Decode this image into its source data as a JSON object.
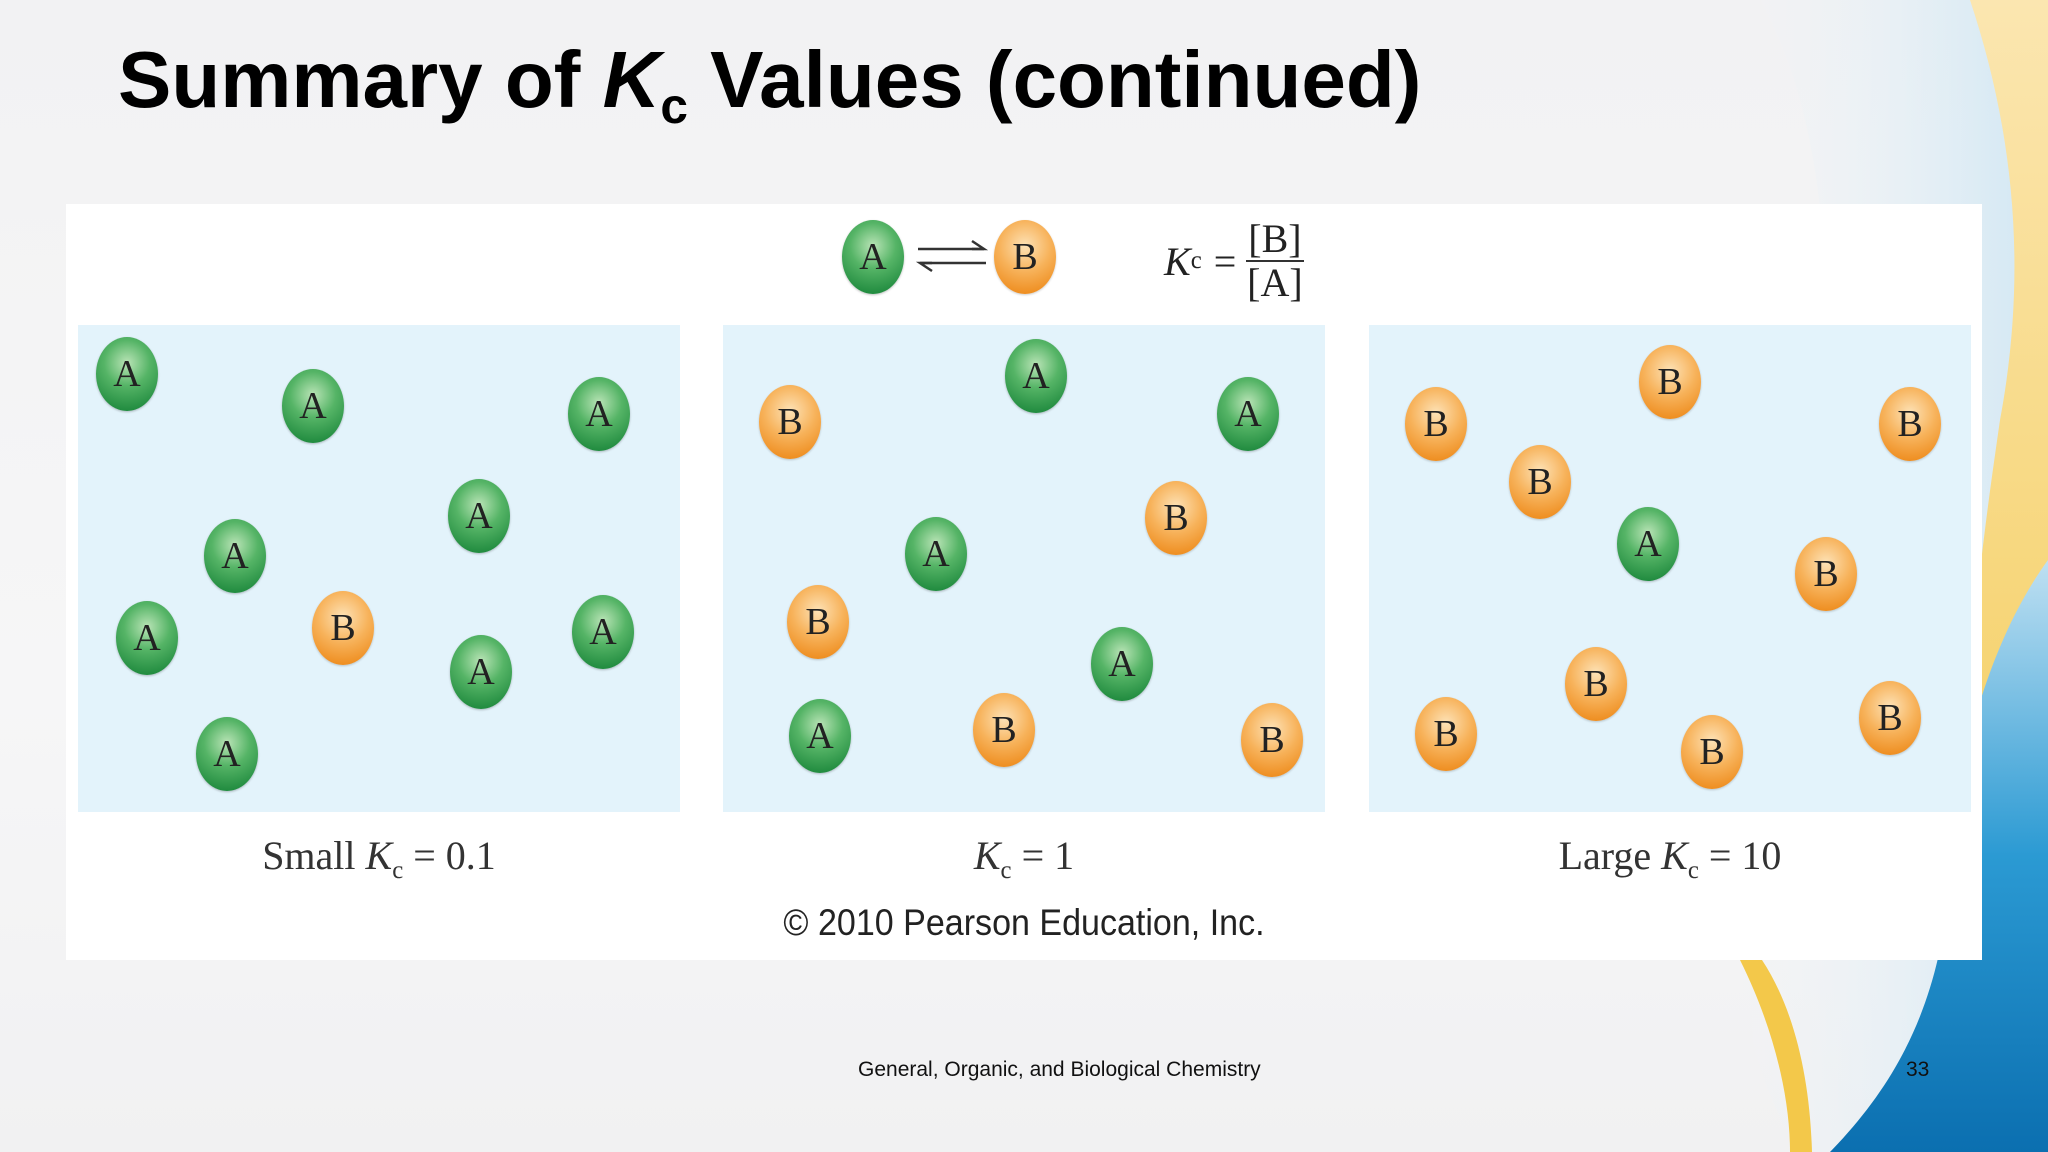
{
  "slide": {
    "title_before": "Summary of ",
    "title_k": "K",
    "title_sub": "c",
    "title_after": " Values (continued)",
    "footer": "General, Organic, and Biological Chemistry",
    "page_number": "33"
  },
  "figure": {
    "equation": {
      "reactant": "A",
      "product": "B",
      "k": "K",
      "k_sub": "c",
      "equals": "=",
      "numerator": "[B]",
      "denominator": "[A]"
    },
    "panels": [
      {
        "caption_prefix": "Small ",
        "caption_k": "K",
        "caption_sub": "c",
        "caption_value": " = 0.1",
        "molecules": [
          "A",
          "A",
          "A",
          "A",
          "A",
          "A",
          "B",
          "A",
          "A",
          "A"
        ]
      },
      {
        "caption_prefix": "",
        "caption_k": "K",
        "caption_sub": "c",
        "caption_value": " = 1",
        "molecules": [
          "A",
          "B",
          "A",
          "B",
          "A",
          "B",
          "A",
          "A",
          "B",
          "B"
        ]
      },
      {
        "caption_prefix": "Large ",
        "caption_k": "K",
        "caption_sub": "c",
        "caption_value": " = 10",
        "molecules": [
          "B",
          "B",
          "B",
          "B",
          "A",
          "B",
          "B",
          "B",
          "B",
          "B"
        ]
      }
    ],
    "copyright": "© 2010 Pearson Education, Inc."
  },
  "colors": {
    "molecule_a": "#2e9b4a",
    "molecule_b": "#f19a2e",
    "panel_background": "#e3f3fb",
    "accent_blue": "#1a86c4",
    "accent_yellow": "#f5cf55"
  }
}
